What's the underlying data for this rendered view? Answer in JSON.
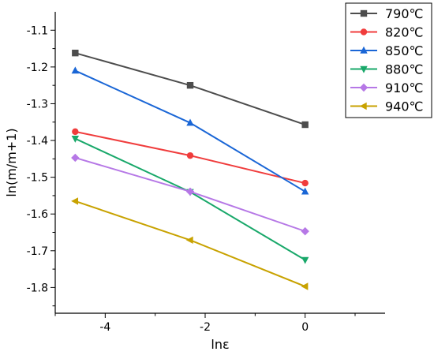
{
  "chart_data": {
    "type": "line",
    "title": "",
    "xlabel": "lnε",
    "ylabel": "ln(m/m+1)",
    "xlim": [
      -5,
      1.6
    ],
    "ylim": [
      -1.87,
      -1.05
    ],
    "x_ticks": [
      -4,
      -2,
      0
    ],
    "x_tick_labels": [
      "-4",
      "-2",
      "0"
    ],
    "y_ticks": [
      -1.1,
      -1.2,
      -1.3,
      -1.4,
      -1.5,
      -1.6,
      -1.7,
      -1.8
    ],
    "y_tick_labels": [
      "-1.1",
      "-1.2",
      "-1.3",
      "-1.4",
      "-1.5",
      "-1.6",
      "-1.7",
      "-1.8"
    ],
    "grid": false,
    "legend_position": "top-right",
    "x": [
      -4.6,
      -2.3,
      0
    ],
    "series": [
      {
        "name": "790℃",
        "color": "#4d4d4d",
        "marker": "square",
        "values": [
          -1.162,
          -1.25,
          -1.357
        ]
      },
      {
        "name": "820℃",
        "color": "#f03c3c",
        "marker": "circle",
        "values": [
          -1.376,
          -1.441,
          -1.516
        ]
      },
      {
        "name": "850℃",
        "color": "#1a66d6",
        "marker": "triangle-up",
        "values": [
          -1.21,
          -1.352,
          -1.539
        ]
      },
      {
        "name": "880℃",
        "color": "#19a86a",
        "marker": "triangle-down",
        "values": [
          -1.395,
          -1.54,
          -1.725
        ]
      },
      {
        "name": "910℃",
        "color": "#b678e6",
        "marker": "diamond",
        "values": [
          -1.447,
          -1.539,
          -1.647
        ]
      },
      {
        "name": "940℃",
        "color": "#c8a200",
        "marker": "triangle-left",
        "values": [
          -1.565,
          -1.671,
          -1.797
        ]
      }
    ]
  }
}
